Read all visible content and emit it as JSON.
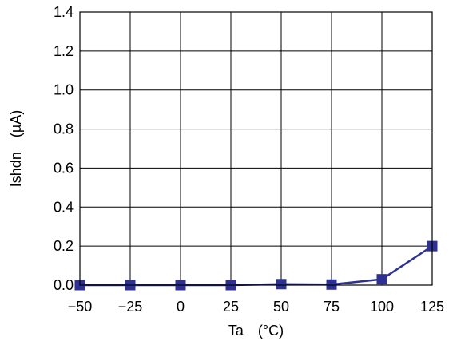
{
  "chart_data": {
    "type": "line",
    "xlabel": "Ta (°C)",
    "ylabel": "Ishdn (µA)",
    "x": [
      -50,
      -25,
      0,
      25,
      50,
      75,
      100,
      125
    ],
    "x_tick_labels": [
      "−50",
      "−25",
      "0",
      "25",
      "50",
      "75",
      "100",
      "125"
    ],
    "y_tick_labels": [
      "0.0",
      "0.2",
      "0.4",
      "0.6",
      "0.8",
      "1.0",
      "1.2",
      "1.4"
    ],
    "y_ticks": [
      0.0,
      0.2,
      0.4,
      0.6,
      0.8,
      1.0,
      1.2,
      1.4
    ],
    "xlim": [
      -50,
      125
    ],
    "ylim": [
      0.0,
      1.4
    ],
    "grid": true,
    "series": [
      {
        "values": [
          0.0,
          0.0,
          0.0,
          0.0,
          0.005,
          0.003,
          0.03,
          0.2
        ],
        "color": "#2e3192",
        "marker": "square"
      }
    ]
  }
}
